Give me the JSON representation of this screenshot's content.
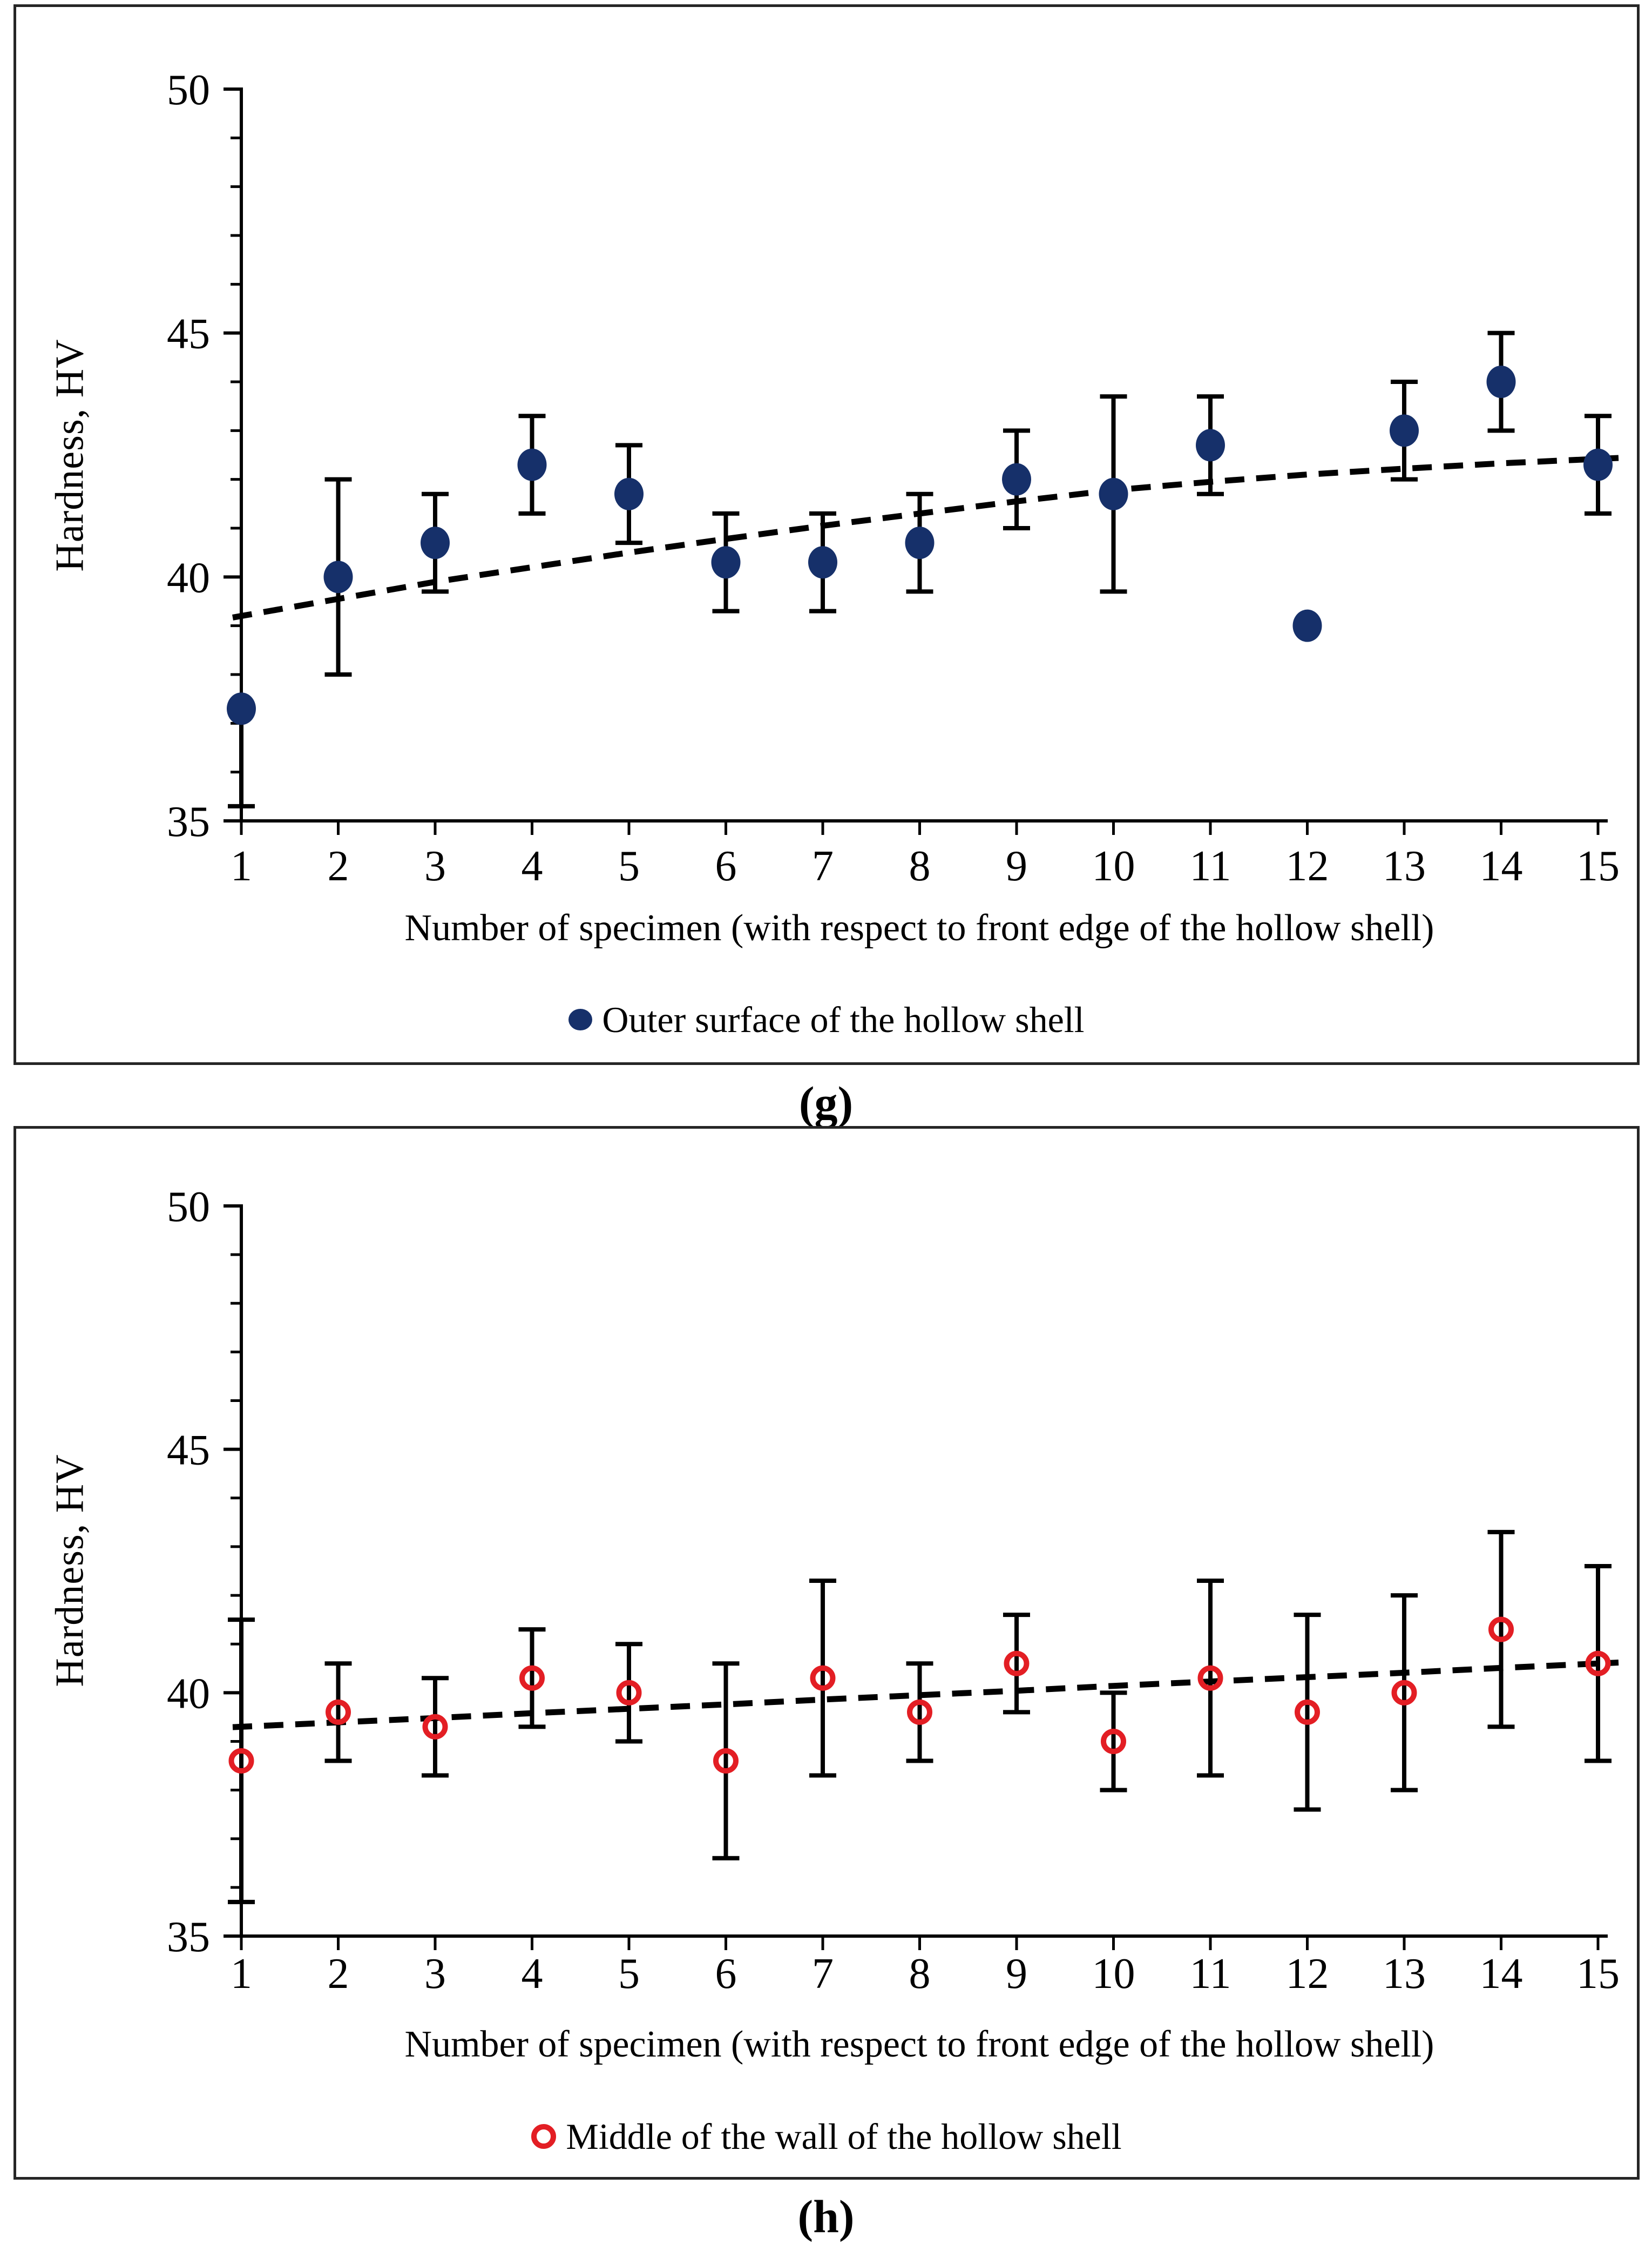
{
  "page": {
    "background": "#ffffff",
    "figure_type": "two stacked scatter panels with error bars"
  },
  "chart_data": [
    {
      "type": "scatter",
      "panel_label": "(g)",
      "xlabel": "Number of specimen (with respect to front edge of the hollow shell)",
      "ylabel": "Hardness, HV",
      "ylim": [
        35,
        50
      ],
      "yticks": [
        35,
        40,
        45,
        50
      ],
      "y_minor_step": 1,
      "grid": false,
      "x": [
        1,
        2,
        3,
        4,
        5,
        6,
        7,
        8,
        9,
        10,
        11,
        12,
        13,
        14,
        15
      ],
      "series": [
        {
          "name": "Outer surface of the hollow shell",
          "marker": "filled-circle",
          "color": "#16306a",
          "values": [
            37.3,
            40.0,
            40.7,
            42.3,
            41.7,
            40.3,
            40.3,
            40.7,
            42.0,
            41.7,
            42.7,
            39.0,
            43.0,
            44.0,
            42.3
          ],
          "err_lo": [
            2.0,
            2.0,
            1.0,
            1.0,
            1.0,
            1.0,
            1.0,
            1.0,
            1.0,
            2.0,
            1.0,
            0,
            1.0,
            1.0,
            1.0
          ],
          "err_hi": [
            0,
            2.0,
            1.0,
            1.0,
            1.0,
            1.0,
            1.0,
            1.0,
            1.0,
            2.0,
            1.0,
            0,
            1.0,
            1.0,
            1.0
          ]
        }
      ],
      "trend": {
        "style": "dashed",
        "color": "#000000",
        "values": [
          39.2,
          39.55,
          39.9,
          40.2,
          40.5,
          40.78,
          41.05,
          41.3,
          41.55,
          41.78,
          41.95,
          42.1,
          42.22,
          42.33,
          42.42
        ]
      },
      "legend": {
        "label": "Outer surface of the hollow shell",
        "marker": "filled-circle",
        "color": "#16306a",
        "position": "bottom"
      }
    },
    {
      "type": "scatter",
      "panel_label": "(h)",
      "xlabel": "Number of specimen (with respect to front edge of the hollow shell)",
      "ylabel": "Hardness, HV",
      "ylim": [
        35,
        50
      ],
      "yticks": [
        35,
        40,
        45,
        50
      ],
      "y_minor_step": 1,
      "grid": false,
      "x": [
        1,
        2,
        3,
        4,
        5,
        6,
        7,
        8,
        9,
        10,
        11,
        12,
        13,
        14,
        15
      ],
      "series": [
        {
          "name": "Middle of the wall of the hollow shell",
          "marker": "open-circle",
          "color": "#e31e24",
          "values": [
            38.6,
            39.6,
            39.3,
            40.3,
            40.0,
            38.6,
            40.3,
            39.6,
            40.6,
            39.0,
            40.3,
            39.6,
            40.0,
            41.3,
            40.6
          ],
          "err_lo": [
            2.9,
            1.0,
            1.0,
            1.0,
            1.0,
            2.0,
            2.0,
            1.0,
            1.0,
            1.0,
            2.0,
            2.0,
            2.0,
            2.0,
            2.0
          ],
          "err_hi": [
            2.9,
            1.0,
            1.0,
            1.0,
            1.0,
            2.0,
            2.0,
            1.0,
            1.0,
            1.0,
            2.0,
            2.0,
            2.0,
            2.0,
            2.0
          ]
        }
      ],
      "trend": {
        "style": "dashed",
        "color": "#000000",
        "values": [
          39.3,
          39.39,
          39.48,
          39.58,
          39.67,
          39.76,
          39.86,
          39.95,
          40.04,
          40.14,
          40.23,
          40.32,
          40.41,
          40.51,
          40.6
        ]
      },
      "legend": {
        "label": "Middle of the wall of the hollow shell",
        "marker": "open-circle",
        "color": "#e31e24",
        "position": "bottom"
      }
    }
  ]
}
